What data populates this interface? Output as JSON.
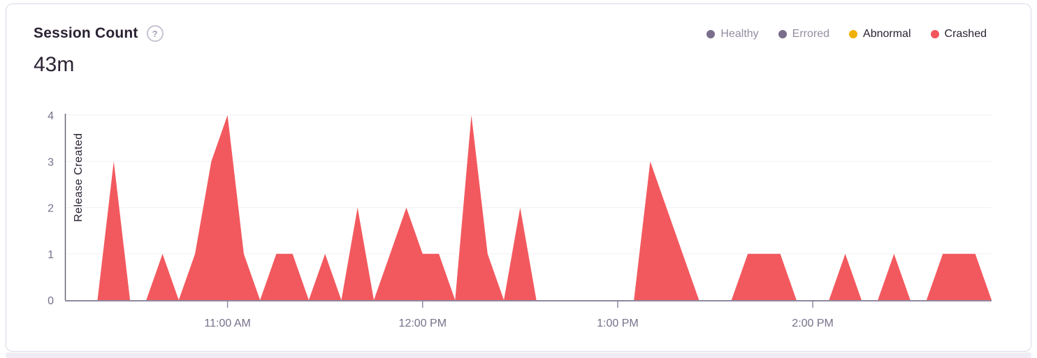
{
  "card": {
    "title": "Session Count",
    "help_glyph": "?",
    "value": "43m"
  },
  "legend": {
    "position": "top-right",
    "items": [
      {
        "label": "Healthy",
        "dot_color": "#7a6e8b",
        "text_color": "#958da1",
        "active": false
      },
      {
        "label": "Errored",
        "dot_color": "#7a6e8b",
        "text_color": "#958da1",
        "active": false
      },
      {
        "label": "Abnormal",
        "dot_color": "#efb005",
        "text_color": "#2b2233",
        "active": true
      },
      {
        "label": "Crashed",
        "dot_color": "#f4545c",
        "text_color": "#2b2233",
        "active": true
      }
    ]
  },
  "chart_data": {
    "type": "area",
    "title": "Session Count",
    "series_name": "Crashed",
    "fill_color": "#f2595e",
    "xlabel": "",
    "ylabel": "",
    "ylim": [
      0,
      4
    ],
    "y_ticks": [
      0,
      1,
      2,
      3,
      4
    ],
    "grid": "horizontal",
    "legend_position": "top-right",
    "interval_minutes": 5,
    "x": [
      "10:10 AM",
      "10:15 AM",
      "10:20 AM",
      "10:25 AM",
      "10:30 AM",
      "10:35 AM",
      "10:40 AM",
      "10:45 AM",
      "10:50 AM",
      "10:55 AM",
      "11:00 AM",
      "11:05 AM",
      "11:10 AM",
      "11:15 AM",
      "11:20 AM",
      "11:25 AM",
      "11:30 AM",
      "11:35 AM",
      "11:40 AM",
      "11:45 AM",
      "11:50 AM",
      "11:55 AM",
      "12:00 PM",
      "12:05 PM",
      "12:10 PM",
      "12:15 PM",
      "12:20 PM",
      "12:25 PM",
      "12:30 PM",
      "12:35 PM",
      "12:40 PM",
      "12:45 PM",
      "12:50 PM",
      "12:55 PM",
      "1:00 PM",
      "1:05 PM",
      "1:10 PM",
      "1:15 PM",
      "1:20 PM",
      "1:25 PM",
      "1:30 PM",
      "1:35 PM",
      "1:40 PM",
      "1:45 PM",
      "1:50 PM",
      "1:55 PM",
      "2:00 PM",
      "2:05 PM",
      "2:10 PM",
      "2:15 PM",
      "2:20 PM",
      "2:25 PM",
      "2:30 PM",
      "2:35 PM",
      "2:40 PM",
      "2:45 PM",
      "2:50 PM",
      "2:55 PM"
    ],
    "values": [
      0,
      0,
      0,
      3,
      0,
      0,
      1,
      0,
      1,
      3,
      4,
      1,
      0,
      1,
      1,
      0,
      1,
      0,
      2,
      0,
      1,
      2,
      1,
      1,
      0,
      4,
      1,
      0,
      2,
      0,
      0,
      0,
      0,
      0,
      0,
      0,
      3,
      2,
      1,
      0,
      0,
      0,
      1,
      1,
      1,
      0,
      0,
      0,
      1,
      0,
      0,
      1,
      0,
      0,
      1,
      1,
      1,
      0
    ],
    "x_tick_labels": [
      "11:00 AM",
      "12:00 PM",
      "1:00 PM",
      "2:00 PM"
    ],
    "x_tick_indices": [
      10,
      22,
      34,
      46
    ],
    "annotation": {
      "label": "Release Created",
      "x": "10:10 AM",
      "x_index": 0
    },
    "colors": {
      "axis_line": "#8f89a0",
      "axis_label": "#77708a",
      "gridline": "#f2f0f6",
      "release_line": "#6b6477",
      "release_label": "#2b2233"
    }
  }
}
